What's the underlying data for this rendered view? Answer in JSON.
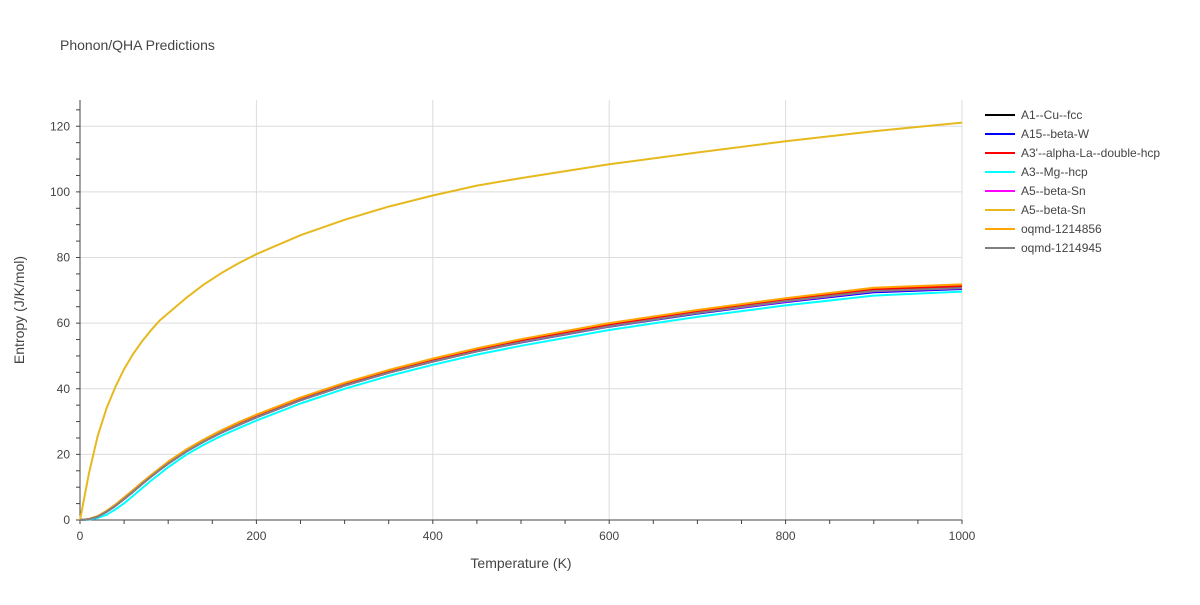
{
  "chart_data": {
    "type": "line",
    "title": "Phonon/QHA Predictions",
    "xlabel": "Temperature (K)",
    "ylabel": "Entropy (J/K/mol)",
    "xlim": [
      0,
      1000
    ],
    "ylim": [
      0,
      128
    ],
    "xticks": [
      0,
      200,
      400,
      600,
      800,
      1000
    ],
    "yticks": [
      0,
      20,
      40,
      60,
      80,
      100,
      120
    ],
    "grid": true,
    "legend_position": "right",
    "x": [
      0,
      10,
      20,
      30,
      40,
      50,
      60,
      70,
      80,
      90,
      100,
      120,
      140,
      160,
      180,
      200,
      250,
      300,
      350,
      400,
      450,
      500,
      600,
      700,
      800,
      900,
      1000
    ],
    "series": [
      {
        "name": "A1--Cu--fcc",
        "color": "#000000",
        "values": [
          0,
          0.2,
          1.0,
          2.5,
          4.3,
          6.4,
          8.6,
          10.9,
          13.1,
          15.2,
          17.2,
          20.8,
          23.9,
          26.6,
          29.0,
          31.3,
          36.5,
          41.0,
          44.9,
          48.3,
          51.4,
          54.2,
          59.1,
          63.2,
          66.8,
          69.9,
          70.8
        ]
      },
      {
        "name": "A15--beta-W",
        "color": "#0000ff",
        "values": [
          0,
          0.2,
          1.0,
          2.5,
          4.3,
          6.4,
          8.6,
          10.9,
          13.1,
          15.2,
          17.2,
          20.8,
          23.9,
          26.6,
          29.0,
          31.3,
          36.5,
          41.0,
          44.9,
          48.3,
          51.4,
          54.1,
          58.9,
          62.9,
          66.4,
          69.4,
          70.4
        ]
      },
      {
        "name": "A3'--alpha-La--double-hcp",
        "color": "#ff0000",
        "values": [
          0,
          0.2,
          1.1,
          2.6,
          4.5,
          6.6,
          8.9,
          11.2,
          13.4,
          15.5,
          17.5,
          21.1,
          24.2,
          27.0,
          29.4,
          31.7,
          36.9,
          41.4,
          45.3,
          48.8,
          51.9,
          54.7,
          59.5,
          63.6,
          67.2,
          70.3,
          71.3
        ]
      },
      {
        "name": "A3--Mg--hcp",
        "color": "#00ffff",
        "values": [
          0,
          0.1,
          0.6,
          1.6,
          3.2,
          5.1,
          7.3,
          9.6,
          11.9,
          14.0,
          16.1,
          19.8,
          22.9,
          25.6,
          28.0,
          30.3,
          35.5,
          40.0,
          43.9,
          47.3,
          50.4,
          53.1,
          57.9,
          61.9,
          65.4,
          68.4,
          69.6
        ]
      },
      {
        "name": "A5--beta-Sn",
        "color": "#ff00ff",
        "values": [
          0,
          0.2,
          1.0,
          2.5,
          4.3,
          6.4,
          8.6,
          10.9,
          13.1,
          15.2,
          17.2,
          20.8,
          23.9,
          26.6,
          29.0,
          31.3,
          36.5,
          41.0,
          44.9,
          48.3,
          51.4,
          54.2,
          59.0,
          63.1,
          66.6,
          69.7,
          70.6
        ]
      },
      {
        "name": "A5--beta-Sn",
        "color": "#e6b91e",
        "values": [
          0,
          14.0,
          25.5,
          34.0,
          40.5,
          46.0,
          50.5,
          54.3,
          57.7,
          60.7,
          63.0,
          67.6,
          71.7,
          75.2,
          78.3,
          81.0,
          86.8,
          91.5,
          95.5,
          98.9,
          101.9,
          104.2,
          108.4,
          112.0,
          115.4,
          118.5,
          121.1
        ]
      },
      {
        "name": "oqmd-1214856",
        "color": "#ffa500",
        "values": [
          0,
          0.3,
          1.2,
          2.8,
          4.7,
          6.9,
          9.1,
          11.4,
          13.6,
          15.7,
          17.8,
          21.4,
          24.5,
          27.3,
          29.8,
          32.1,
          37.3,
          41.8,
          45.7,
          49.2,
          52.3,
          55.1,
          60.0,
          64.0,
          67.6,
          70.8,
          71.8
        ]
      },
      {
        "name": "oqmd-1214945",
        "color": "#808080",
        "values": [
          0,
          0.2,
          1.0,
          2.5,
          4.3,
          6.4,
          8.6,
          10.9,
          13.1,
          15.2,
          17.2,
          20.8,
          23.9,
          26.6,
          29.0,
          31.3,
          36.5,
          41.0,
          44.9,
          48.3,
          51.4,
          54.2,
          59.0,
          63.1,
          66.7,
          69.8,
          70.7
        ]
      }
    ]
  }
}
